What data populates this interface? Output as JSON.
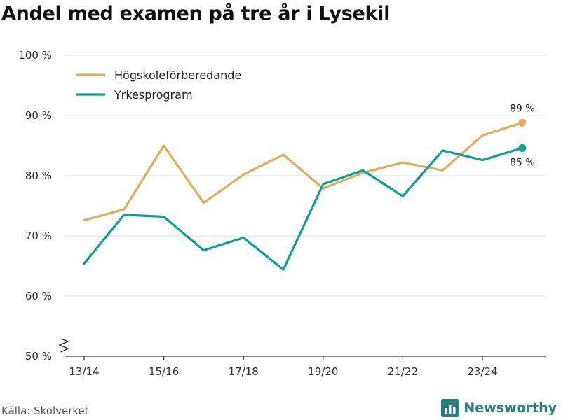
{
  "title": "Andel med examen på tre år i Lysekil",
  "source": "Källa: Skolverket",
  "brand": "Newsworthy",
  "colors": {
    "series_a": "#DDAE5E",
    "series_b": "#0E9E93",
    "grid": "#e0e0e0",
    "axis": "#333333",
    "brand": "#2a7f7a"
  },
  "icons": {
    "axis_break": "zigzag-break-icon",
    "brand_logo": "bar-chart-logo-icon"
  },
  "chart_data": {
    "type": "line",
    "title": "Andel med examen på tre år i Lysekil",
    "xlabel": "",
    "ylabel": "",
    "x_tick_labels": [
      "13/14",
      "15/16",
      "17/18",
      "19/20",
      "21/22",
      "23/24"
    ],
    "categories": [
      "13/14",
      "14/15",
      "15/16",
      "16/17",
      "17/18",
      "18/19",
      "19/20",
      "20/21",
      "21/22",
      "22/23",
      "23/24",
      "24/25"
    ],
    "y_ticks": [
      50,
      60,
      70,
      80,
      90,
      100
    ],
    "y_tick_labels": [
      "50 %",
      "60 %",
      "70 %",
      "80 %",
      "90 %",
      "100 %"
    ],
    "ylim": [
      50,
      100
    ],
    "grid": true,
    "legend_position": "top-left",
    "series": [
      {
        "name": "Högskoleförberedande",
        "color": "#DDAE5E",
        "values": [
          72.6,
          74.4,
          85.0,
          75.5,
          80.2,
          83.5,
          77.9,
          80.5,
          82.2,
          80.9,
          86.7,
          88.8
        ],
        "end_label": "89 %"
      },
      {
        "name": "Yrkesprogram",
        "color": "#0E9E93",
        "values": [
          65.4,
          73.5,
          73.2,
          67.6,
          69.7,
          64.4,
          78.6,
          80.9,
          76.6,
          84.2,
          82.6,
          84.6
        ],
        "end_label": "85 %"
      }
    ]
  }
}
